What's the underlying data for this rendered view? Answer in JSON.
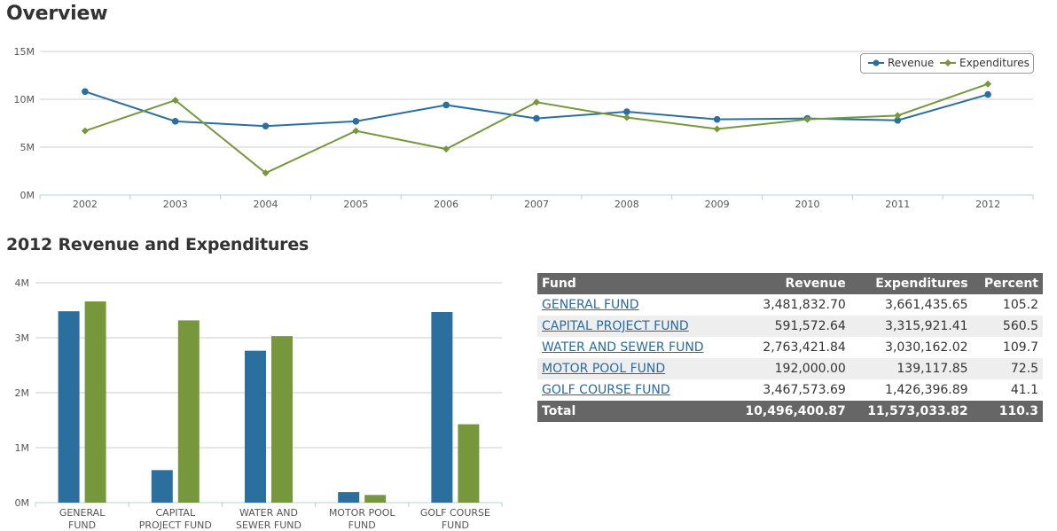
{
  "page": {
    "title": "Overview",
    "section2_title": "2012 Revenue and Expenditures"
  },
  "colors": {
    "revenue": "#2a6f9e",
    "expenditures": "#77973d",
    "grid": "#cccccc",
    "axis": "#b0d4d4",
    "header_bg": "#666666"
  },
  "legend": {
    "revenue": "Revenue",
    "expenditures": "Expenditures"
  },
  "chart_data": [
    {
      "type": "line",
      "x": [
        "2002",
        "2003",
        "2004",
        "2005",
        "2006",
        "2007",
        "2008",
        "2009",
        "2010",
        "2011",
        "2012"
      ],
      "ylim": [
        0,
        15000000
      ],
      "yticks": [
        "0M",
        "5M",
        "10M",
        "15M"
      ],
      "grid": true,
      "legend_position": "top-right",
      "series": [
        {
          "name": "Revenue",
          "values": [
            10.8,
            7.7,
            7.2,
            7.7,
            9.4,
            8.0,
            8.7,
            7.9,
            8.0,
            7.8,
            10.5
          ]
        },
        {
          "name": "Expenditures",
          "values": [
            6.7,
            9.9,
            2.3,
            6.7,
            4.8,
            9.7,
            8.1,
            6.9,
            7.9,
            8.3,
            11.6
          ]
        }
      ]
    },
    {
      "type": "bar",
      "categories": [
        [
          "GENERAL",
          "FUND"
        ],
        [
          "CAPITAL",
          "PROJECT FUND"
        ],
        [
          "WATER AND",
          "SEWER FUND"
        ],
        [
          "MOTOR POOL",
          "FUND"
        ],
        [
          "GOLF COURSE",
          "FUND"
        ]
      ],
      "ylim": [
        0,
        4000000
      ],
      "yticks": [
        "0M",
        "1M",
        "2M",
        "3M",
        "4M"
      ],
      "grid": true,
      "series": [
        {
          "name": "Revenue",
          "values": [
            3481832.7,
            591572.64,
            2763421.84,
            192000.0,
            3467573.69
          ]
        },
        {
          "name": "Expenditures",
          "values": [
            3661435.65,
            3315921.41,
            3030162.02,
            139117.85,
            1426396.89
          ]
        }
      ]
    }
  ],
  "table": {
    "headers": {
      "fund": "Fund",
      "revenue": "Revenue",
      "expenditures": "Expenditures",
      "percent": "Percent"
    },
    "rows": [
      {
        "fund": "GENERAL FUND",
        "revenue": "3,481,832.70",
        "expenditures": "3,661,435.65",
        "percent": "105.2"
      },
      {
        "fund": "CAPITAL PROJECT FUND",
        "revenue": "591,572.64",
        "expenditures": "3,315,921.41",
        "percent": "560.5"
      },
      {
        "fund": "WATER AND SEWER FUND",
        "revenue": "2,763,421.84",
        "expenditures": "3,030,162.02",
        "percent": "109.7"
      },
      {
        "fund": "MOTOR POOL FUND",
        "revenue": "192,000.00",
        "expenditures": "139,117.85",
        "percent": "72.5"
      },
      {
        "fund": "GOLF COURSE FUND",
        "revenue": "3,467,573.69",
        "expenditures": "1,426,396.89",
        "percent": "41.1"
      }
    ],
    "total": {
      "label": "Total",
      "revenue": "10,496,400.87",
      "expenditures": "11,573,033.82",
      "percent": "110.3"
    }
  }
}
